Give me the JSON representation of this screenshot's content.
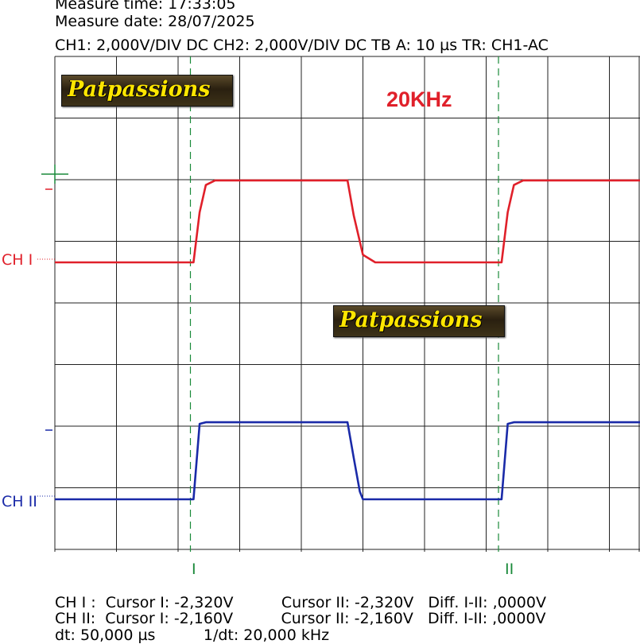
{
  "header": {
    "measure_time": "Measure time: 17:33:05",
    "measure_date": "Measure date: 28/07/2025",
    "settings": "CH1: 2,000V/DIV DC  CH2: 2,000V/DIV DC   TB A: 10 µs   TR: CH1-AC"
  },
  "watermark": "Patpassions",
  "annotation": "20KHz",
  "channels": {
    "ch1_label": "CH I",
    "ch2_label": "CH II",
    "ch1_color": "#e0202a",
    "ch2_color": "#1a2aa8"
  },
  "cursors": {
    "c1_label": "I",
    "c2_label": "II",
    "c1_time_us": 22,
    "c2_time_us": 72,
    "color": "#1a8a3a"
  },
  "readouts": {
    "ch1_line": "CH I :  Cursor I: -2,320V          Cursor II: -2,320V   Diff. I-II: ,0000V",
    "ch2_line": "CH II:  Cursor I: -2,160V          Cursor II: -2,160V   Diff. I-II: ,0000V",
    "dt_line": "dt: 50,000 µs          1/dt: 20,000 kHz"
  },
  "chart_data": {
    "type": "line",
    "x_unit": "µs",
    "xlim": [
      0,
      95
    ],
    "grid": true,
    "divisions": {
      "x": 9.5,
      "y": 8
    },
    "series": [
      {
        "name": "CH I",
        "points": [
          [
            0,
            -0.15
          ],
          [
            22.5,
            -0.15
          ],
          [
            23.5,
            1.5
          ],
          [
            24.5,
            2.4
          ],
          [
            26,
            2.55
          ],
          [
            47.5,
            2.55
          ],
          [
            48.5,
            1.4
          ],
          [
            50,
            0.1
          ],
          [
            52,
            -0.15
          ],
          [
            72.5,
            -0.15
          ],
          [
            73.5,
            1.5
          ],
          [
            74.5,
            2.4
          ],
          [
            76,
            2.55
          ],
          [
            95,
            2.55
          ]
        ]
      },
      {
        "name": "CH II",
        "points": [
          [
            0,
            -0.15
          ],
          [
            22.5,
            -0.15
          ],
          [
            23.5,
            2.3
          ],
          [
            24.5,
            2.35
          ],
          [
            47.5,
            2.35
          ],
          [
            48.5,
            1.2
          ],
          [
            49.5,
            0.1
          ],
          [
            50,
            -0.15
          ],
          [
            72.5,
            -0.15
          ],
          [
            73.5,
            2.3
          ],
          [
            74.5,
            2.35
          ],
          [
            95,
            2.35
          ]
        ]
      }
    ]
  }
}
